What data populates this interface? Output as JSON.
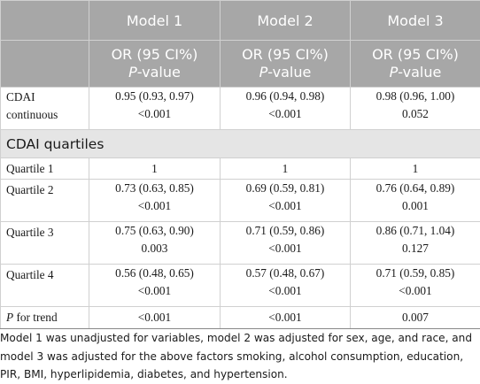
{
  "header": {
    "models": [
      "Model 1",
      "Model 2",
      "Model 3"
    ],
    "subheader_line1": "OR (95 CI%)",
    "subheader_p": "P",
    "subheader_p_suffix": "-value"
  },
  "rows": {
    "cdai_continuous": {
      "label": "CDAI continuous",
      "or": [
        "0.95 (0.93, 0.97)",
        "0.96 (0.94, 0.98)",
        "0.98 (0.96, 1.00)"
      ],
      "p": [
        "<0.001",
        "<0.001",
        "0.052"
      ]
    },
    "section_label": "CDAI quartiles",
    "quartile1": {
      "label": "Quartile 1",
      "or": [
        "1",
        "1",
        "1"
      ]
    },
    "quartile2": {
      "label": "Quartile 2",
      "or": [
        "0.73 (0.63, 0.85)",
        "0.69 (0.59, 0.81)",
        "0.76 (0.64, 0.89)"
      ],
      "p": [
        "<0.001",
        "<0.001",
        "0.001"
      ]
    },
    "quartile3": {
      "label": "Quartile 3",
      "or": [
        "0.75 (0.63, 0.90)",
        "0.71 (0.59, 0.86)",
        "0.86 (0.71, 1.04)"
      ],
      "p": [
        "0.003",
        "<0.001",
        "0.127"
      ]
    },
    "quartile4": {
      "label": "Quartile 4",
      "or": [
        "0.56 (0.48, 0.65)",
        "0.57 (0.48, 0.67)",
        "0.71 (0.59, 0.85)"
      ],
      "p": [
        "<0.001",
        "<0.001",
        "<0.001"
      ]
    },
    "trend": {
      "label_p": "P",
      "label_rest": " for trend",
      "p": [
        "<0.001",
        "<0.001",
        "0.007"
      ]
    }
  },
  "footnote": "Model 1 was unadjusted for variables, model 2 was adjusted for sex, age, and race, and model 3 was adjusted for the above factors smoking, alcohol consumption, education, PIR, BMI, hyperlipidemia, diabetes, and hypertension."
}
